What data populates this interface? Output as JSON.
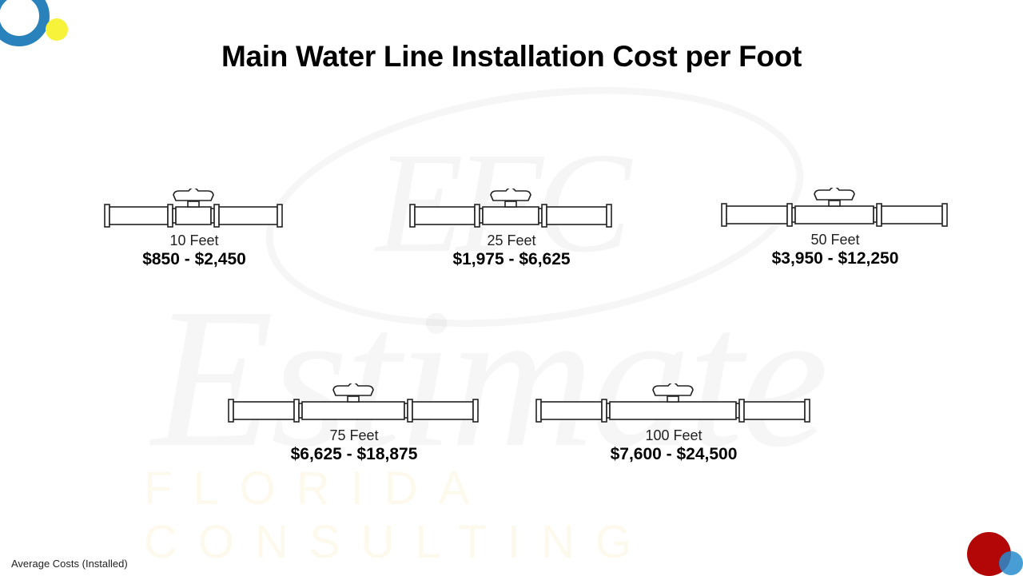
{
  "title": "Main Water Line Installation Cost per Foot",
  "footnote": "Average Costs (Installed)",
  "watermark": {
    "monogram": "EFC",
    "script": "Estimate",
    "subtitle": "FLORIDA CONSULTING"
  },
  "colors": {
    "ring": "#2a82bd",
    "yellow_dot": "#f7f23a",
    "red_dot": "#b20607",
    "blue_dot": "#2a8ccd",
    "text": "#000000"
  },
  "items": [
    {
      "length": "10 Feet",
      "price": "$850 - $2,450",
      "icon": "pipe-valve-icon"
    },
    {
      "length": "25 Feet",
      "price": "$1,975 - $6,625",
      "icon": "pipe-valve-icon"
    },
    {
      "length": "50 Feet",
      "price": "$3,950 - $12,250",
      "icon": "pipe-valve-icon"
    },
    {
      "length": "75 Feet",
      "price": "$6,625 - $18,875",
      "icon": "pipe-valve-icon"
    },
    {
      "length": "100 Feet",
      "price": "$7,600 - $24,500",
      "icon": "pipe-valve-icon"
    }
  ]
}
